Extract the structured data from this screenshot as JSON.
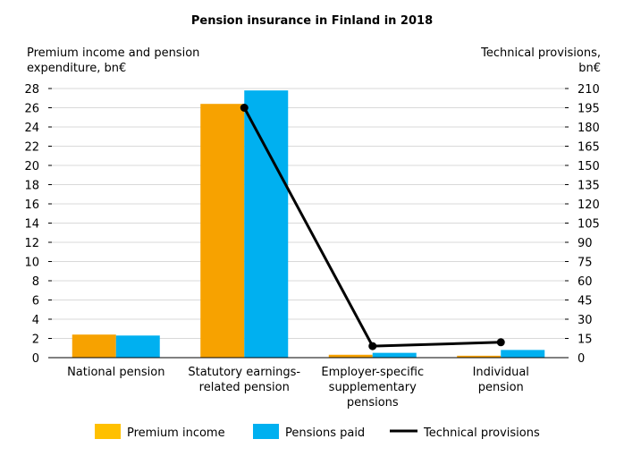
{
  "chart_data": {
    "type": "bar+line",
    "title": "Pension insurance in Finland in 2018",
    "ylabel_left": [
      "Premium income and pension",
      "expenditure, bn€"
    ],
    "ylabel_right": [
      "Technical provisions,",
      "bn€"
    ],
    "categories": [
      [
        "National pension"
      ],
      [
        "Statutory earnings-",
        "related pension"
      ],
      [
        "Employer-specific",
        "supplementary",
        "pensions"
      ],
      [
        "Individual",
        "pension"
      ]
    ],
    "ylim_left": [
      0,
      28
    ],
    "yticks_left": [
      "0",
      "2",
      "4",
      "6",
      "8",
      "10",
      "12",
      "14",
      "16",
      "18",
      "20",
      "22",
      "24",
      "26",
      "28"
    ],
    "ylim_right": [
      0,
      210
    ],
    "yticks_right": [
      "0",
      "15",
      "30",
      "45",
      "60",
      "75",
      "90",
      "105",
      "120",
      "135",
      "150",
      "165",
      "180",
      "195",
      "210"
    ],
    "grid": true,
    "legend_position": "bottom",
    "series": [
      {
        "name": "Premium income",
        "type": "bar",
        "axis": "left",
        "color": "#f7a200",
        "legend_color": "#ffc000",
        "values": [
          2.4,
          26.4,
          0.3,
          0.2
        ]
      },
      {
        "name": "Pensions paid",
        "type": "bar",
        "axis": "left",
        "color": "#00b0f0",
        "legend_color": "#00b0f0",
        "values": [
          2.3,
          27.8,
          0.5,
          0.8
        ]
      },
      {
        "name": "Technical provisions",
        "type": "line",
        "axis": "right",
        "color": "#000000",
        "values": [
          null,
          195,
          9,
          12
        ]
      }
    ]
  }
}
